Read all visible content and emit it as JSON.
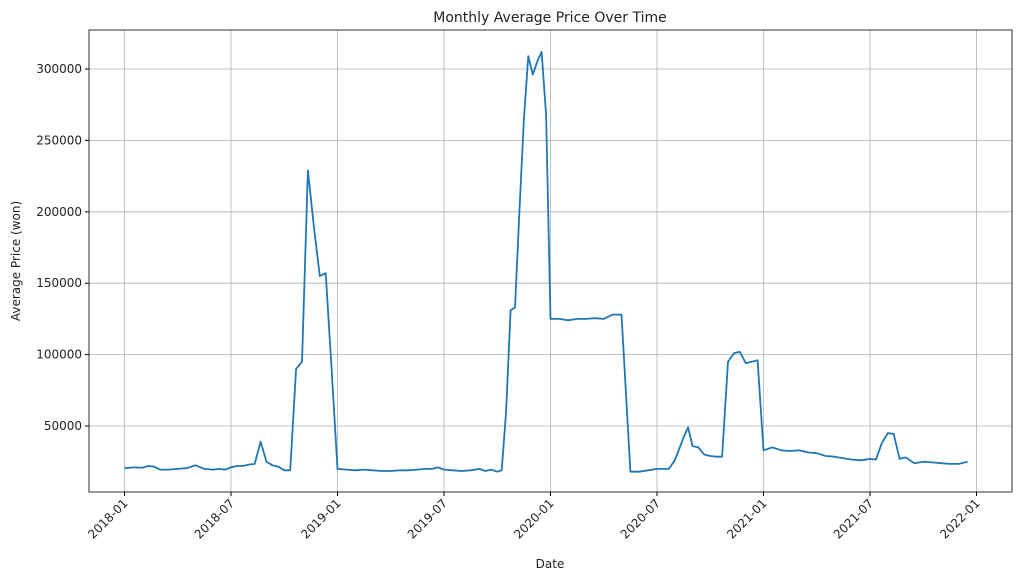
{
  "chart_data": {
    "type": "line",
    "title": "Monthly Average Price Over Time",
    "x_label": "Date",
    "y_label": "Average Price (won)",
    "x": [
      "2018-01",
      "2018-01",
      "2018-02",
      "2018-02",
      "2018-02",
      "2018-03",
      "2018-03",
      "2018-04",
      "2018-04",
      "2018-05",
      "2018-05",
      "2018-06",
      "2018-06",
      "2018-06",
      "2018-07",
      "2018-07",
      "2018-07",
      "2018-08",
      "2018-08",
      "2018-08",
      "2018-09",
      "2018-09",
      "2018-09",
      "2018-10",
      "2018-10",
      "2018-10",
      "2018-11",
      "2018-11",
      "2018-11",
      "2018-12",
      "2018-12",
      "2018-12",
      "2019-01",
      "2019-01",
      "2019-02",
      "2019-02",
      "2019-03",
      "2019-03",
      "2019-04",
      "2019-04",
      "2019-05",
      "2019-05",
      "2019-06",
      "2019-06",
      "2019-06",
      "2019-07",
      "2019-07",
      "2019-08",
      "2019-08",
      "2019-09",
      "2019-09",
      "2019-09",
      "2019-10",
      "2019-10",
      "2019-10",
      "2019-10",
      "2019-11",
      "2019-11",
      "2019-11",
      "2019-11",
      "2019-12",
      "2019-12",
      "2019-12",
      "2019-12",
      "2020-01",
      "2020-01",
      "2020-02",
      "2020-02",
      "2020-03",
      "2020-03",
      "2020-04",
      "2020-04",
      "2020-05",
      "2020-05",
      "2020-06",
      "2020-06",
      "2020-07",
      "2020-07",
      "2020-07",
      "2020-08",
      "2020-08",
      "2020-08",
      "2020-08",
      "2020-09",
      "2020-09",
      "2020-09",
      "2020-10",
      "2020-10",
      "2020-10",
      "2020-11",
      "2020-11",
      "2020-11",
      "2020-12",
      "2020-12",
      "2020-12",
      "2021-01",
      "2021-01",
      "2021-02",
      "2021-02",
      "2021-03",
      "2021-03",
      "2021-04",
      "2021-04",
      "2021-05",
      "2021-05",
      "2021-06",
      "2021-06",
      "2021-07",
      "2021-07",
      "2021-07",
      "2021-08",
      "2021-08",
      "2021-08",
      "2021-09",
      "2021-09",
      "2021-10",
      "2021-10",
      "2021-11",
      "2021-11",
      "2021-12",
      "2021-12"
    ],
    "series": [
      {
        "name": "Average Price",
        "color": "#1f77b4",
        "values": [
          20500,
          21000,
          20800,
          22000,
          21500,
          19500,
          19500,
          20000,
          20500,
          22500,
          20000,
          19500,
          20000,
          19500,
          21000,
          22000,
          22000,
          23000,
          23500,
          39000,
          25000,
          22500,
          21500,
          19000,
          19000,
          90000,
          95000,
          229000,
          190000,
          155000,
          157000,
          90000,
          20000,
          19500,
          19000,
          19500,
          19000,
          18500,
          18500,
          19000,
          19000,
          19500,
          20000,
          20000,
          21000,
          19500,
          19000,
          18500,
          19000,
          20000,
          18500,
          19500,
          18000,
          19000,
          60000,
          131000,
          133000,
          200000,
          265000,
          309000,
          296000,
          305000,
          312000,
          268000,
          125000,
          125000,
          124000,
          125000,
          125000,
          125500,
          125000,
          128000,
          128000,
          18000,
          18000,
          19000,
          20000,
          20000,
          20000,
          26000,
          34000,
          42000,
          49000,
          36000,
          35000,
          30000,
          29000,
          28500,
          28500,
          95000,
          101000,
          102000,
          94000,
          95000,
          96000,
          33000,
          35000,
          33000,
          32500,
          33000,
          31500,
          31000,
          29000,
          28500,
          27500,
          26500,
          26000,
          27000,
          26500,
          38000,
          45000,
          44500,
          27000,
          28000,
          24000,
          25000,
          24500,
          24000,
          23500,
          23500,
          25000
        ]
      }
    ],
    "xlim": [
      "2017-11",
      "2022-03"
    ],
    "xticks": [
      "2018-01",
      "2018-07",
      "2019-01",
      "2019-07",
      "2020-01",
      "2020-07",
      "2021-01",
      "2021-07",
      "2022-01"
    ],
    "ylim": [
      3800,
      327300
    ],
    "yticks": [
      50000,
      100000,
      150000,
      200000,
      250000,
      300000
    ],
    "grid": true
  }
}
